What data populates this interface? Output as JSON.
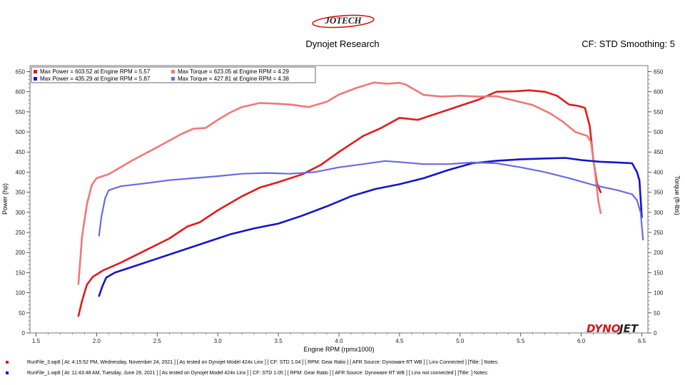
{
  "header": {
    "logo_text": "JOTECH",
    "title": "Dynojet Research",
    "cf_smoothing": "CF: STD Smoothing: 5"
  },
  "colors": {
    "run1_power": "#e21b1b",
    "run1_torque": "#ef7878",
    "run2_power": "#1414c8",
    "run2_torque": "#6a6ae6",
    "background": "#ffffff",
    "brand_red": "#d0181a",
    "brand_dark": "#222222"
  },
  "watermark": {
    "brand_left": "DYNO",
    "brand_right": "JET"
  },
  "chart_data": {
    "type": "line",
    "xlabel": "Engine RPM (rpmx1000)",
    "ylabel_left": "Power (hp)",
    "ylabel_right": "Torque (ft-lbs)",
    "xlim": [
      1.45,
      6.55
    ],
    "ylim": [
      0,
      665
    ],
    "x_ticks": [
      1.5,
      2.0,
      2.5,
      3.0,
      3.5,
      4.0,
      4.5,
      5.0,
      5.5,
      6.0,
      6.5
    ],
    "x_tick_labels": [
      "1.5",
      "2.0",
      "2.5",
      "3.0",
      "3.5",
      "4.0",
      "4.5",
      "5.0",
      "5.5",
      "6.0",
      "6.5"
    ],
    "y_ticks": [
      0,
      50,
      100,
      150,
      200,
      250,
      300,
      350,
      400,
      450,
      500,
      550,
      600,
      650
    ],
    "y_tick_labels": [
      "0",
      "50",
      "100",
      "150",
      "200",
      "250",
      "300",
      "350",
      "400",
      "450",
      "500",
      "550",
      "600",
      "650"
    ],
    "grid": false,
    "legend_position": "top-left",
    "legend": [
      "Max Power = 603.52 at Engine RPM = 5.57",
      "Max Torque = 623.05 at Engine RPM = 4.29",
      "Max Power = 435.29 at Engine RPM = 5.87",
      "Max Torque = 427.81 at Engine RPM = 4.38"
    ],
    "series": [
      {
        "name": "Max Power = 603.52 at Engine RPM = 5.57",
        "color": "#e21b1b",
        "width": 2.6,
        "points": [
          [
            1.85,
            42
          ],
          [
            1.88,
            80
          ],
          [
            1.92,
            120
          ],
          [
            1.97,
            140
          ],
          [
            2.05,
            155
          ],
          [
            2.2,
            175
          ],
          [
            2.4,
            205
          ],
          [
            2.6,
            235
          ],
          [
            2.75,
            265
          ],
          [
            2.85,
            275
          ],
          [
            3.0,
            305
          ],
          [
            3.2,
            340
          ],
          [
            3.35,
            362
          ],
          [
            3.5,
            375
          ],
          [
            3.7,
            395
          ],
          [
            3.85,
            418
          ],
          [
            4.0,
            450
          ],
          [
            4.2,
            490
          ],
          [
            4.35,
            510
          ],
          [
            4.5,
            535
          ],
          [
            4.65,
            530
          ],
          [
            4.8,
            545
          ],
          [
            5.0,
            565
          ],
          [
            5.15,
            580
          ],
          [
            5.3,
            600
          ],
          [
            5.45,
            601
          ],
          [
            5.57,
            603.52
          ],
          [
            5.7,
            600
          ],
          [
            5.8,
            590
          ],
          [
            5.9,
            568
          ],
          [
            5.97,
            565
          ],
          [
            6.03,
            560
          ],
          [
            6.07,
            515
          ],
          [
            6.1,
            430
          ],
          [
            6.13,
            372
          ],
          [
            6.16,
            350
          ]
        ]
      },
      {
        "name": "Max Torque = 623.05 at Engine RPM = 4.29",
        "color": "#ef7878",
        "width": 2.6,
        "points": [
          [
            1.85,
            122
          ],
          [
            1.88,
            240
          ],
          [
            1.92,
            320
          ],
          [
            1.96,
            368
          ],
          [
            2.0,
            385
          ],
          [
            2.1,
            395
          ],
          [
            2.3,
            430
          ],
          [
            2.5,
            462
          ],
          [
            2.7,
            495
          ],
          [
            2.8,
            508
          ],
          [
            2.9,
            510
          ],
          [
            3.0,
            530
          ],
          [
            3.1,
            548
          ],
          [
            3.2,
            562
          ],
          [
            3.35,
            572
          ],
          [
            3.5,
            570
          ],
          [
            3.6,
            568
          ],
          [
            3.75,
            562
          ],
          [
            3.9,
            575
          ],
          [
            4.0,
            593
          ],
          [
            4.15,
            610
          ],
          [
            4.29,
            623.05
          ],
          [
            4.4,
            620
          ],
          [
            4.5,
            622
          ],
          [
            4.55,
            618
          ],
          [
            4.7,
            592
          ],
          [
            4.85,
            588
          ],
          [
            5.0,
            590
          ],
          [
            5.15,
            588
          ],
          [
            5.3,
            589
          ],
          [
            5.45,
            578
          ],
          [
            5.6,
            567
          ],
          [
            5.75,
            545
          ],
          [
            5.85,
            525
          ],
          [
            5.95,
            500
          ],
          [
            6.05,
            490
          ],
          [
            6.08,
            475
          ],
          [
            6.11,
            410
          ],
          [
            6.14,
            330
          ],
          [
            6.16,
            298
          ]
        ]
      },
      {
        "name": "Max Power = 435.29 at Engine RPM = 5.87",
        "color": "#1414c8",
        "width": 2.6,
        "points": [
          [
            2.02,
            92
          ],
          [
            2.05,
            118
          ],
          [
            2.08,
            138
          ],
          [
            2.15,
            150
          ],
          [
            2.3,
            165
          ],
          [
            2.5,
            185
          ],
          [
            2.7,
            205
          ],
          [
            2.9,
            225
          ],
          [
            3.1,
            245
          ],
          [
            3.3,
            260
          ],
          [
            3.5,
            272
          ],
          [
            3.7,
            292
          ],
          [
            3.9,
            315
          ],
          [
            4.1,
            340
          ],
          [
            4.3,
            358
          ],
          [
            4.5,
            370
          ],
          [
            4.7,
            385
          ],
          [
            4.9,
            405
          ],
          [
            5.1,
            422
          ],
          [
            5.3,
            428
          ],
          [
            5.5,
            432
          ],
          [
            5.7,
            434
          ],
          [
            5.87,
            435.29
          ],
          [
            6.0,
            430
          ],
          [
            6.15,
            426
          ],
          [
            6.3,
            424
          ],
          [
            6.42,
            422
          ],
          [
            6.46,
            400
          ],
          [
            6.48,
            380
          ],
          [
            6.5,
            288
          ]
        ]
      },
      {
        "name": "Max Torque = 427.81 at Engine RPM = 4.38",
        "color": "#6a6ae6",
        "width": 2.2,
        "points": [
          [
            2.02,
            242
          ],
          [
            2.04,
            290
          ],
          [
            2.07,
            335
          ],
          [
            2.1,
            355
          ],
          [
            2.2,
            365
          ],
          [
            2.4,
            372
          ],
          [
            2.6,
            380
          ],
          [
            2.8,
            385
          ],
          [
            3.0,
            390
          ],
          [
            3.2,
            396
          ],
          [
            3.4,
            398
          ],
          [
            3.6,
            396
          ],
          [
            3.8,
            400
          ],
          [
            4.0,
            412
          ],
          [
            4.2,
            420
          ],
          [
            4.38,
            427.81
          ],
          [
            4.5,
            425
          ],
          [
            4.7,
            420
          ],
          [
            4.9,
            420
          ],
          [
            5.1,
            424
          ],
          [
            5.3,
            422
          ],
          [
            5.5,
            412
          ],
          [
            5.7,
            400
          ],
          [
            5.9,
            385
          ],
          [
            6.1,
            368
          ],
          [
            6.3,
            355
          ],
          [
            6.42,
            345
          ],
          [
            6.46,
            330
          ],
          [
            6.49,
            300
          ],
          [
            6.51,
            232
          ]
        ]
      }
    ]
  },
  "footer": {
    "run1": "RunFile_3.wp8 [ At: 4:15:52 PM, Wednesday, November 24, 2021 ] [ As tested on Dynojet Model 424x Linx ] [ CF: STD 1.04 ] [ RPM: Gear Ratio ] [ AFR Source: Dynoware RT WB ] [ Linx Connected ] [Title: ]   Notes:",
    "run2": "RunFile_1.wp8 [ At: 11:43:48 AM, Tuesday, June 29, 2021 ] [ As tested on Dynojet Model 424x Linx ] [ CF: STD 1.05 ] [ RPM: Gear Ratio ] [ AFR Source: Dynoware RT WB ] [ Linx not connected ] [Title: ]   Notes:"
  }
}
